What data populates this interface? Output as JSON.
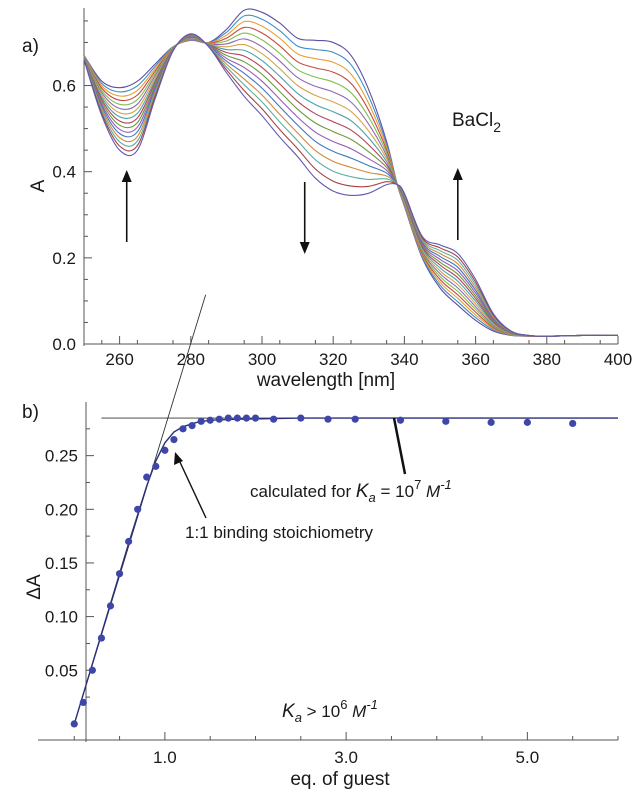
{
  "panel_a_label": "a)",
  "panel_b_label": "b)",
  "chart_data": [
    {
      "type": "line",
      "xlabel": "wavelength [nm]",
      "ylabel": "A",
      "xlim": [
        250,
        400
      ],
      "ylim": [
        0,
        0.78
      ],
      "xticks": [
        260,
        280,
        300,
        320,
        340,
        360,
        380,
        400
      ],
      "xtick_labels": [
        "260",
        "280",
        "300",
        "320",
        "340",
        "360",
        "380",
        "400"
      ],
      "yticks": [
        0.0,
        0.2,
        0.4,
        0.6
      ],
      "ytick_labels": [
        "0.0",
        "0.2",
        "0.4",
        "0.6"
      ],
      "grid": false,
      "annotation": {
        "text": "BaCl",
        "subscript": "2"
      },
      "arrows": [
        {
          "x": 262,
          "direction": "up"
        },
        {
          "x": 312,
          "direction": "down"
        },
        {
          "x": 355,
          "direction": "up"
        }
      ],
      "series_colors": [
        "#5e4fa2",
        "#3f8fc4",
        "#e8a033",
        "#c8463f",
        "#7fbf4d",
        "#8c6bb1",
        "#d4a44a",
        "#4aa3a8",
        "#b0455a",
        "#6f9a3c",
        "#9a5bb8",
        "#3c78c2",
        "#d28a3a",
        "#5ab0a0",
        "#a84040",
        "#5f5bb0"
      ],
      "endpoint_curves": {
        "x": [
          250,
          255,
          260,
          265,
          270,
          275,
          280,
          285,
          290,
          295,
          300,
          305,
          310,
          315,
          320,
          325,
          330,
          335,
          338,
          340,
          345,
          350,
          355,
          360,
          365,
          370,
          375,
          380,
          390,
          400
        ],
        "start": [
          0.67,
          0.61,
          0.595,
          0.61,
          0.65,
          0.69,
          0.705,
          0.7,
          0.73,
          0.775,
          0.77,
          0.745,
          0.71,
          0.705,
          0.7,
          0.67,
          0.59,
          0.47,
          0.37,
          0.32,
          0.2,
          0.13,
          0.09,
          0.055,
          0.03,
          0.02,
          0.018,
          0.018,
          0.02,
          0.02
        ],
        "end": [
          0.66,
          0.53,
          0.45,
          0.45,
          0.57,
          0.68,
          0.72,
          0.69,
          0.63,
          0.575,
          0.53,
          0.48,
          0.435,
          0.385,
          0.355,
          0.345,
          0.35,
          0.37,
          0.37,
          0.35,
          0.25,
          0.23,
          0.21,
          0.15,
          0.07,
          0.03,
          0.02,
          0.018,
          0.02,
          0.02
        ]
      }
    },
    {
      "type": "scatter",
      "xlabel": "eq. of guest",
      "ylabel": "ΔA",
      "xlim": [
        -0.4,
        6.0
      ],
      "ylim": [
        -0.015,
        0.3
      ],
      "xticks": [
        1.0,
        3.0,
        5.0
      ],
      "xtick_labels": [
        "1.0",
        "3.0",
        "5.0"
      ],
      "yticks": [
        0.05,
        0.1,
        0.15,
        0.2,
        0.25
      ],
      "ytick_labels": [
        "0.05",
        "0.10",
        "0.15",
        "0.20",
        "0.25"
      ],
      "grid": false,
      "points": {
        "x": [
          0.0,
          0.1,
          0.2,
          0.3,
          0.4,
          0.5,
          0.6,
          0.7,
          0.8,
          0.9,
          1.0,
          1.1,
          1.2,
          1.3,
          1.4,
          1.5,
          1.6,
          1.7,
          1.8,
          1.9,
          2.0,
          2.2,
          2.5,
          2.8,
          3.1,
          3.6,
          4.1,
          4.6,
          5.0,
          5.5
        ],
        "y": [
          0.0,
          0.02,
          0.05,
          0.08,
          0.11,
          0.14,
          0.17,
          0.2,
          0.23,
          0.24,
          0.255,
          0.265,
          0.275,
          0.278,
          0.282,
          0.283,
          0.284,
          0.285,
          0.285,
          0.285,
          0.285,
          0.284,
          0.285,
          0.284,
          0.284,
          0.283,
          0.282,
          0.281,
          0.281,
          0.28
        ]
      },
      "fit_curve": {
        "label_parts": [
          "calculated for ",
          "K",
          "a",
          " = 10",
          "7",
          " M",
          "-1"
        ],
        "x": [
          0.0,
          0.2,
          0.4,
          0.6,
          0.8,
          0.9,
          1.0,
          1.1,
          1.2,
          1.35,
          1.5,
          1.8,
          2.5,
          4.0,
          6.0
        ],
        "y": [
          0.0,
          0.056,
          0.112,
          0.168,
          0.222,
          0.245,
          0.262,
          0.272,
          0.277,
          0.281,
          0.283,
          0.284,
          0.285,
          0.285,
          0.285
        ]
      },
      "tangent_lines": [
        {
          "x": [
            0.0,
            1.45
          ],
          "y": [
            0.0,
            0.4
          ]
        },
        {
          "x": [
            0.3,
            6.0
          ],
          "y": [
            0.285,
            0.285
          ]
        }
      ],
      "stoichiometry_label": "1:1 binding stoichiometry",
      "ka_label_parts": [
        "K",
        "a",
        " > 10",
        "6",
        "  M",
        "-1"
      ],
      "marker_color": "#3e47a8"
    }
  ]
}
